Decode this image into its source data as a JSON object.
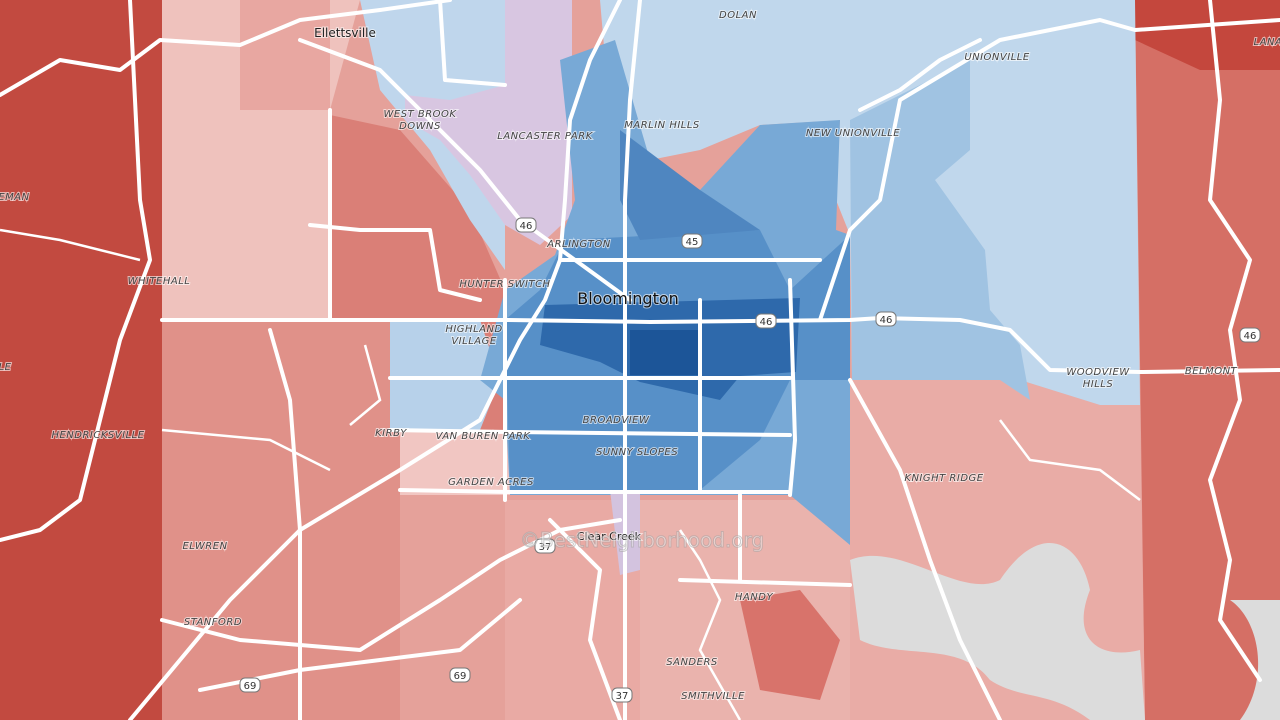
{
  "labels": {
    "ellettsville": "Ellettsville",
    "dolan": "DOLAN",
    "lana": "LANA",
    "unionville": "UNIONVILLE",
    "west_brook_downs": [
      "WEST BROOK",
      "DOWNS"
    ],
    "lancaster_park": "LANCASTER PARK",
    "marlin_hills": "MARLIN HILLS",
    "new_unionville": "NEW UNIONVILLE",
    "eman": "EMAN",
    "arlington": "ARLINGTON",
    "whitehall": "WHITEHALL",
    "hunter_switch": "HUNTER SWITCH",
    "bloomington": "Bloomington",
    "highland_village": [
      "HIGHLAND",
      "VILLAGE"
    ],
    "le": "LE",
    "hendricksville": "HENDRICKSVILLE",
    "kirby": "KIRBY",
    "van_buren_park": "VAN BUREN PARK",
    "broadview": "BROADVIEW",
    "sunny_slopes": "SUNNY SLOPES",
    "garden_acres": "GARDEN ACRES",
    "knight_ridge": "KNIGHT RIDGE",
    "woodview_hills": [
      "WOODVIEW",
      "HILLS"
    ],
    "belmont": "BELMONT",
    "clear_creek": "Clear Creek",
    "elwren": "ELWREN",
    "handy": "HANDY",
    "stanford": "STANFORD",
    "sanders": "SANDERS",
    "smithville": "SMITHVILLE"
  },
  "shields": [
    "46",
    "45",
    "46",
    "46",
    "46",
    "37",
    "37",
    "69",
    "69"
  ],
  "watermark": "©BestNeighborhood.org"
}
